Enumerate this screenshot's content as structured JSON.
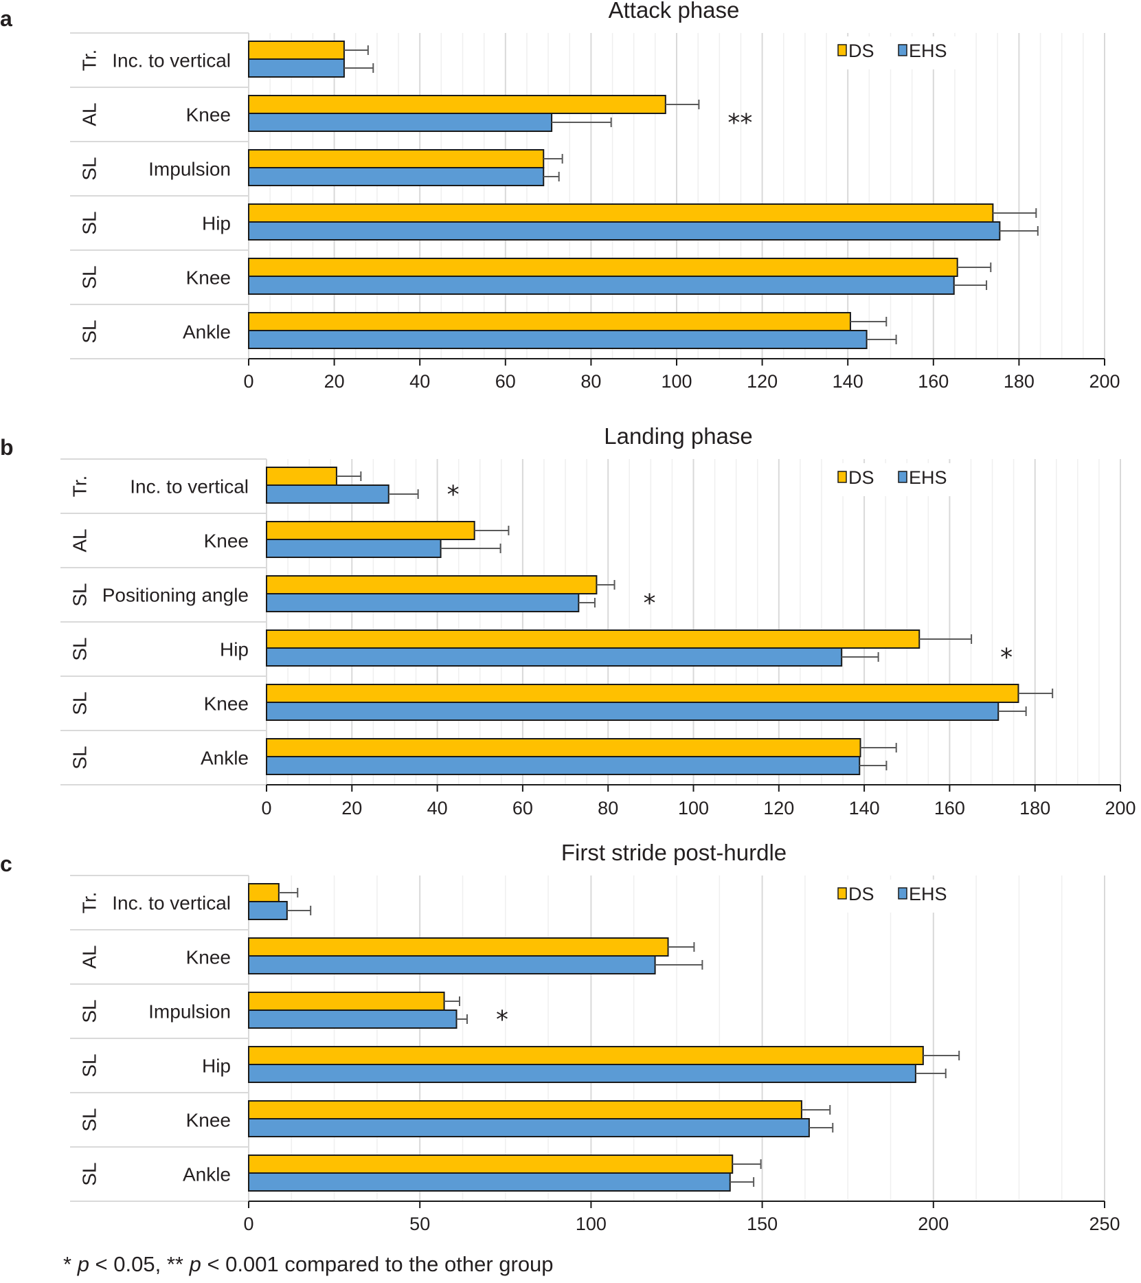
{
  "chart_data": [
    {
      "type": "bar",
      "orientation": "horizontal",
      "panel_label": "a",
      "title": "Attack phase",
      "xlim": [
        0,
        200
      ],
      "xticks": [
        0,
        20,
        40,
        60,
        80,
        100,
        120,
        140,
        160,
        180,
        200
      ],
      "grid": true,
      "legend_position": "top-right",
      "categories": [
        {
          "group": "Tr.",
          "label": "Inc. to vertical",
          "significance": ""
        },
        {
          "group": "AL",
          "label": "Knee",
          "significance": "**"
        },
        {
          "group": "SL",
          "label": "Impulsion",
          "significance": ""
        },
        {
          "group": "SL",
          "label": "Hip",
          "significance": ""
        },
        {
          "group": "SL",
          "label": "Knee",
          "significance": ""
        },
        {
          "group": "SL",
          "label": "Ankle",
          "significance": ""
        }
      ],
      "series": [
        {
          "name": "DS",
          "color": "#ffc000",
          "values": [
            22.3,
            97.4,
            68.9,
            173.9,
            165.6,
            140.6
          ],
          "errors": [
            5.6,
            7.8,
            4.4,
            10.1,
            7.8,
            8.4
          ]
        },
        {
          "name": "EHS",
          "color": "#5b9bd5",
          "values": [
            22.3,
            70.8,
            68.9,
            175.5,
            164.8,
            144.4
          ],
          "errors": [
            6.8,
            13.9,
            3.6,
            8.9,
            7.6,
            6.9
          ]
        }
      ]
    },
    {
      "type": "bar",
      "orientation": "horizontal",
      "panel_label": "b",
      "title": "Landing phase",
      "xlim": [
        0,
        200
      ],
      "xticks": [
        0,
        20,
        40,
        60,
        80,
        100,
        120,
        140,
        160,
        180,
        200
      ],
      "grid": true,
      "legend_position": "top-right",
      "categories": [
        {
          "group": "Tr.",
          "label": "Inc. to vertical",
          "significance": "*"
        },
        {
          "group": "AL",
          "label": "Knee",
          "significance": ""
        },
        {
          "group": "SL",
          "label": "Positioning angle",
          "significance": "*"
        },
        {
          "group": "SL",
          "label": "Hip",
          "significance": "*"
        },
        {
          "group": "SL",
          "label": "Knee",
          "significance": ""
        },
        {
          "group": "SL",
          "label": "Ankle",
          "significance": ""
        }
      ],
      "series": [
        {
          "name": "DS",
          "color": "#ffc000",
          "values": [
            16.4,
            48.7,
            77.3,
            152.9,
            176.1,
            139.1
          ],
          "errors": [
            5.7,
            8.0,
            4.2,
            12.2,
            8.0,
            8.4
          ]
        },
        {
          "name": "EHS",
          "color": "#5b9bd5",
          "values": [
            28.6,
            40.8,
            73.1,
            134.7,
            171.4,
            138.9
          ],
          "errors": [
            6.9,
            14.0,
            3.8,
            8.6,
            6.5,
            6.3
          ]
        }
      ]
    },
    {
      "type": "bar",
      "orientation": "horizontal",
      "panel_label": "c",
      "title": "First stride post-hurdle",
      "xlim": [
        0,
        250
      ],
      "xticks": [
        0,
        50,
        100,
        150,
        200,
        250
      ],
      "grid": true,
      "legend_position": "top-right",
      "categories": [
        {
          "group": "Tr.",
          "label": "Inc. to vertical",
          "significance": ""
        },
        {
          "group": "AL",
          "label": "Knee",
          "significance": ""
        },
        {
          "group": "SL",
          "label": "Impulsion",
          "significance": "*"
        },
        {
          "group": "SL",
          "label": "Hip",
          "significance": ""
        },
        {
          "group": "SL",
          "label": "Knee",
          "significance": ""
        },
        {
          "group": "SL",
          "label": "Ankle",
          "significance": ""
        }
      ],
      "series": [
        {
          "name": "DS",
          "color": "#ffc000",
          "values": [
            8.8,
            122.5,
            57.1,
            197.0,
            161.5,
            141.3
          ],
          "errors": [
            5.5,
            7.6,
            4.5,
            10.5,
            8.3,
            8.3
          ]
        },
        {
          "name": "EHS",
          "color": "#5b9bd5",
          "values": [
            11.2,
            118.7,
            60.7,
            194.8,
            163.7,
            140.6
          ],
          "errors": [
            6.9,
            13.8,
            3.1,
            8.8,
            6.9,
            6.9
          ]
        }
      ]
    }
  ],
  "footnote": {
    "star1": "* ",
    "p1": "p",
    "text1": " < 0.05, ** ",
    "p2": "p",
    "text2": " < 0.001 compared to the other group"
  }
}
